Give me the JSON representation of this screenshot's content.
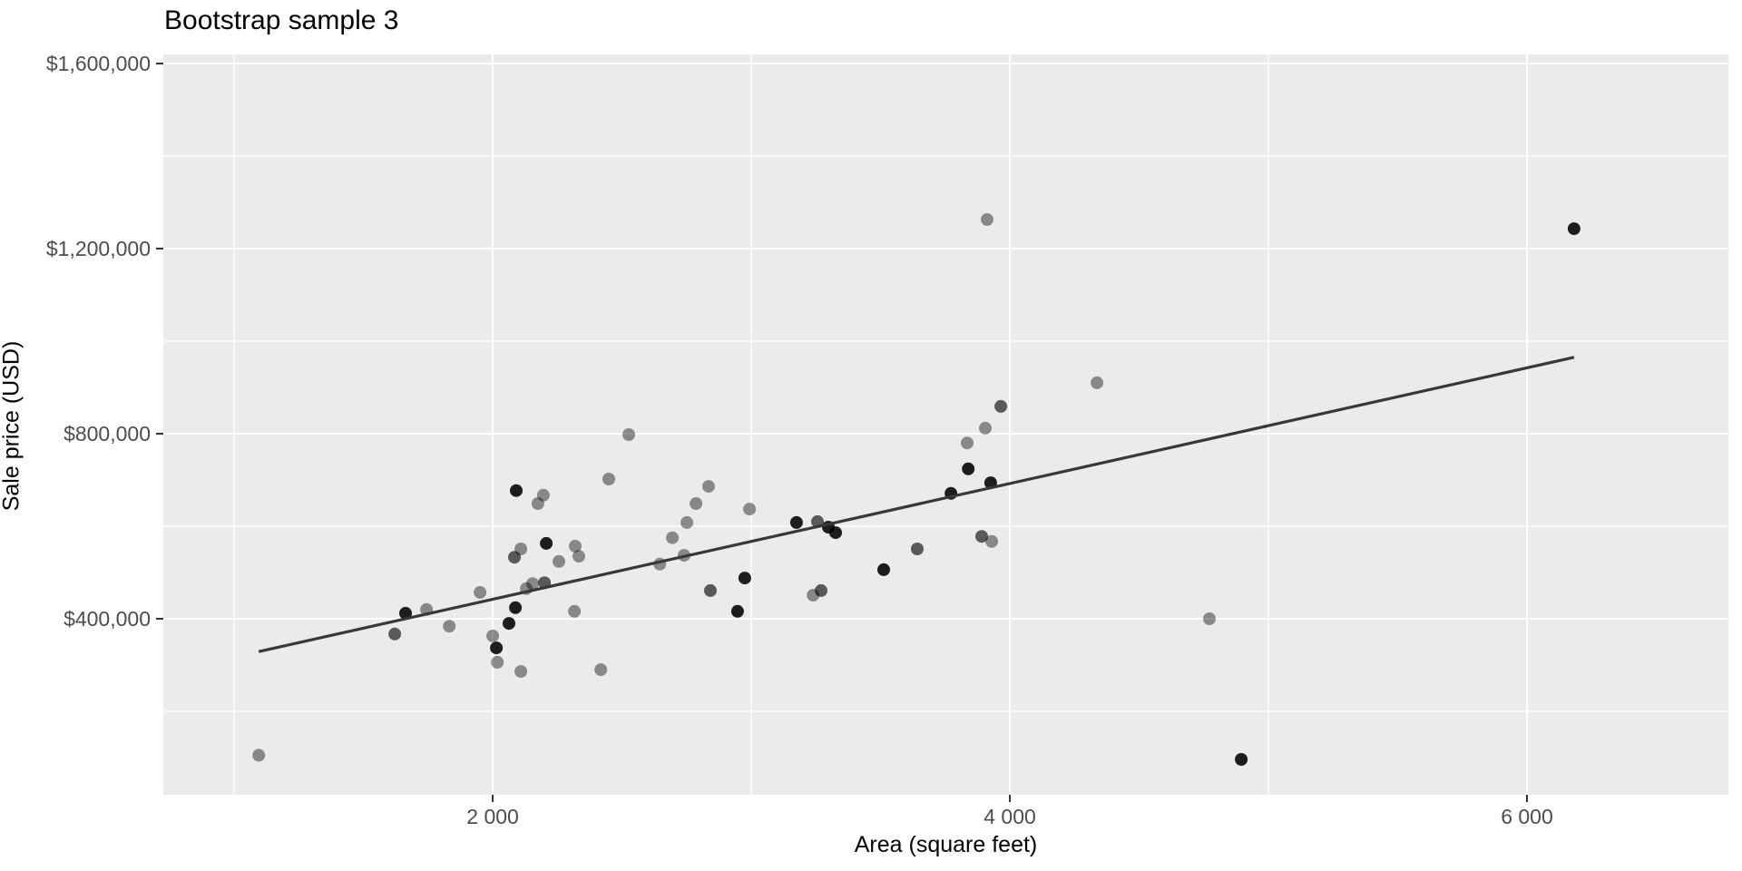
{
  "title": "Bootstrap sample 3",
  "axes": {
    "x_label": "Area (square feet)",
    "y_label": "Sale price (USD)"
  },
  "colors": {
    "page_bg": "#FFFFFF",
    "panel_bg": "#EBEBEB",
    "grid_major": "#FFFFFF",
    "grid_minor": "#FFFFFF",
    "tick_mark": "#333333",
    "tick_text": "#4D4D4D",
    "title_text": "#000000",
    "point": "#000000",
    "line": "#383838"
  },
  "chart_data": {
    "type": "scatter",
    "title": "Bootstrap sample 3",
    "xlabel": "Area (square feet)",
    "ylabel": "Sale price (USD)",
    "xlim": [
      726,
      6779
    ],
    "ylim": [
      19600,
      1619600
    ],
    "grid": true,
    "legend": "none",
    "x_ticks": [
      {
        "value": 2000,
        "label": "2 000"
      },
      {
        "value": 4000,
        "label": "4 000"
      },
      {
        "value": 6000,
        "label": "6 000"
      }
    ],
    "y_ticks": [
      {
        "value": 400000,
        "label": "$400,000"
      },
      {
        "value": 800000,
        "label": "$800,000"
      },
      {
        "value": 1200000,
        "label": "$1,200,000"
      },
      {
        "value": 1600000,
        "label": "$1,600,000"
      }
    ],
    "x_minor": [
      1000,
      3000,
      5000
    ],
    "y_minor": [
      200000,
      600000,
      1000000,
      1400000
    ],
    "point_radius": 7,
    "shade_alpha": {
      "med": 0.42,
      "dark": 0.62,
      "black": 0.88
    },
    "points": [
      {
        "area": 1095,
        "price": 105000,
        "shade": "med"
      },
      {
        "area": 1621,
        "price": 367000,
        "shade": "dark"
      },
      {
        "area": 1663,
        "price": 412000,
        "shade": "black"
      },
      {
        "area": 1744,
        "price": 420000,
        "shade": "med"
      },
      {
        "area": 1832,
        "price": 384000,
        "shade": "med"
      },
      {
        "area": 1951,
        "price": 457000,
        "shade": "med"
      },
      {
        "area": 2000,
        "price": 363000,
        "shade": "med"
      },
      {
        "area": 2014,
        "price": 337000,
        "shade": "black"
      },
      {
        "area": 2018,
        "price": 306000,
        "shade": "med"
      },
      {
        "area": 2063,
        "price": 390000,
        "shade": "black"
      },
      {
        "area": 2088,
        "price": 424000,
        "shade": "black"
      },
      {
        "area": 2109,
        "price": 286000,
        "shade": "med"
      },
      {
        "area": 2130,
        "price": 465000,
        "shade": "med"
      },
      {
        "area": 2154,
        "price": 476000,
        "shade": "med"
      },
      {
        "area": 2200,
        "price": 478000,
        "shade": "dark"
      },
      {
        "area": 2256,
        "price": 524000,
        "shade": "med"
      },
      {
        "area": 2316,
        "price": 416000,
        "shade": "med"
      },
      {
        "area": 2418,
        "price": 290000,
        "shade": "med"
      },
      {
        "area": 2091,
        "price": 677000,
        "shade": "black"
      },
      {
        "area": 2196,
        "price": 667000,
        "shade": "med"
      },
      {
        "area": 2175,
        "price": 649000,
        "shade": "med"
      },
      {
        "area": 2449,
        "price": 702000,
        "shade": "med"
      },
      {
        "area": 2526,
        "price": 798000,
        "shade": "med"
      },
      {
        "area": 2207,
        "price": 563000,
        "shade": "black"
      },
      {
        "area": 2319,
        "price": 557000,
        "shade": "med"
      },
      {
        "area": 2333,
        "price": 535000,
        "shade": "med"
      },
      {
        "area": 2084,
        "price": 533000,
        "shade": "dark"
      },
      {
        "area": 2109,
        "price": 551000,
        "shade": "med"
      },
      {
        "area": 2695,
        "price": 575000,
        "shade": "med"
      },
      {
        "area": 2740,
        "price": 537000,
        "shade": "med"
      },
      {
        "area": 2646,
        "price": 518000,
        "shade": "med"
      },
      {
        "area": 2751,
        "price": 608000,
        "shade": "med"
      },
      {
        "area": 2786,
        "price": 649000,
        "shade": "med"
      },
      {
        "area": 2835,
        "price": 686000,
        "shade": "med"
      },
      {
        "area": 2993,
        "price": 637000,
        "shade": "med"
      },
      {
        "area": 2842,
        "price": 461000,
        "shade": "dark"
      },
      {
        "area": 2975,
        "price": 488000,
        "shade": "black"
      },
      {
        "area": 2947,
        "price": 416000,
        "shade": "black"
      },
      {
        "area": 3175,
        "price": 608000,
        "shade": "black"
      },
      {
        "area": 3256,
        "price": 610000,
        "shade": "dark"
      },
      {
        "area": 3298,
        "price": 598000,
        "shade": "black"
      },
      {
        "area": 3326,
        "price": 586000,
        "shade": "black"
      },
      {
        "area": 3239,
        "price": 451000,
        "shade": "med"
      },
      {
        "area": 3270,
        "price": 461000,
        "shade": "dark"
      },
      {
        "area": 3512,
        "price": 506000,
        "shade": "black"
      },
      {
        "area": 3642,
        "price": 551000,
        "shade": "dark"
      },
      {
        "area": 3772,
        "price": 671000,
        "shade": "black"
      },
      {
        "area": 3839,
        "price": 724000,
        "shade": "black"
      },
      {
        "area": 3926,
        "price": 694000,
        "shade": "black"
      },
      {
        "area": 3905,
        "price": 812000,
        "shade": "med"
      },
      {
        "area": 3835,
        "price": 780000,
        "shade": "med"
      },
      {
        "area": 3965,
        "price": 859000,
        "shade": "dark"
      },
      {
        "area": 3891,
        "price": 578000,
        "shade": "dark"
      },
      {
        "area": 3930,
        "price": 567000,
        "shade": "med"
      },
      {
        "area": 4337,
        "price": 910000,
        "shade": "med"
      },
      {
        "area": 3912,
        "price": 1263000,
        "shade": "med"
      },
      {
        "area": 6182,
        "price": 1243000,
        "shade": "black"
      },
      {
        "area": 4772,
        "price": 400000,
        "shade": "med"
      },
      {
        "area": 4895,
        "price": 96000,
        "shade": "black"
      }
    ],
    "regression_line": {
      "x1": 1095,
      "y1": 329000,
      "x2": 6182,
      "y2": 965000
    }
  }
}
